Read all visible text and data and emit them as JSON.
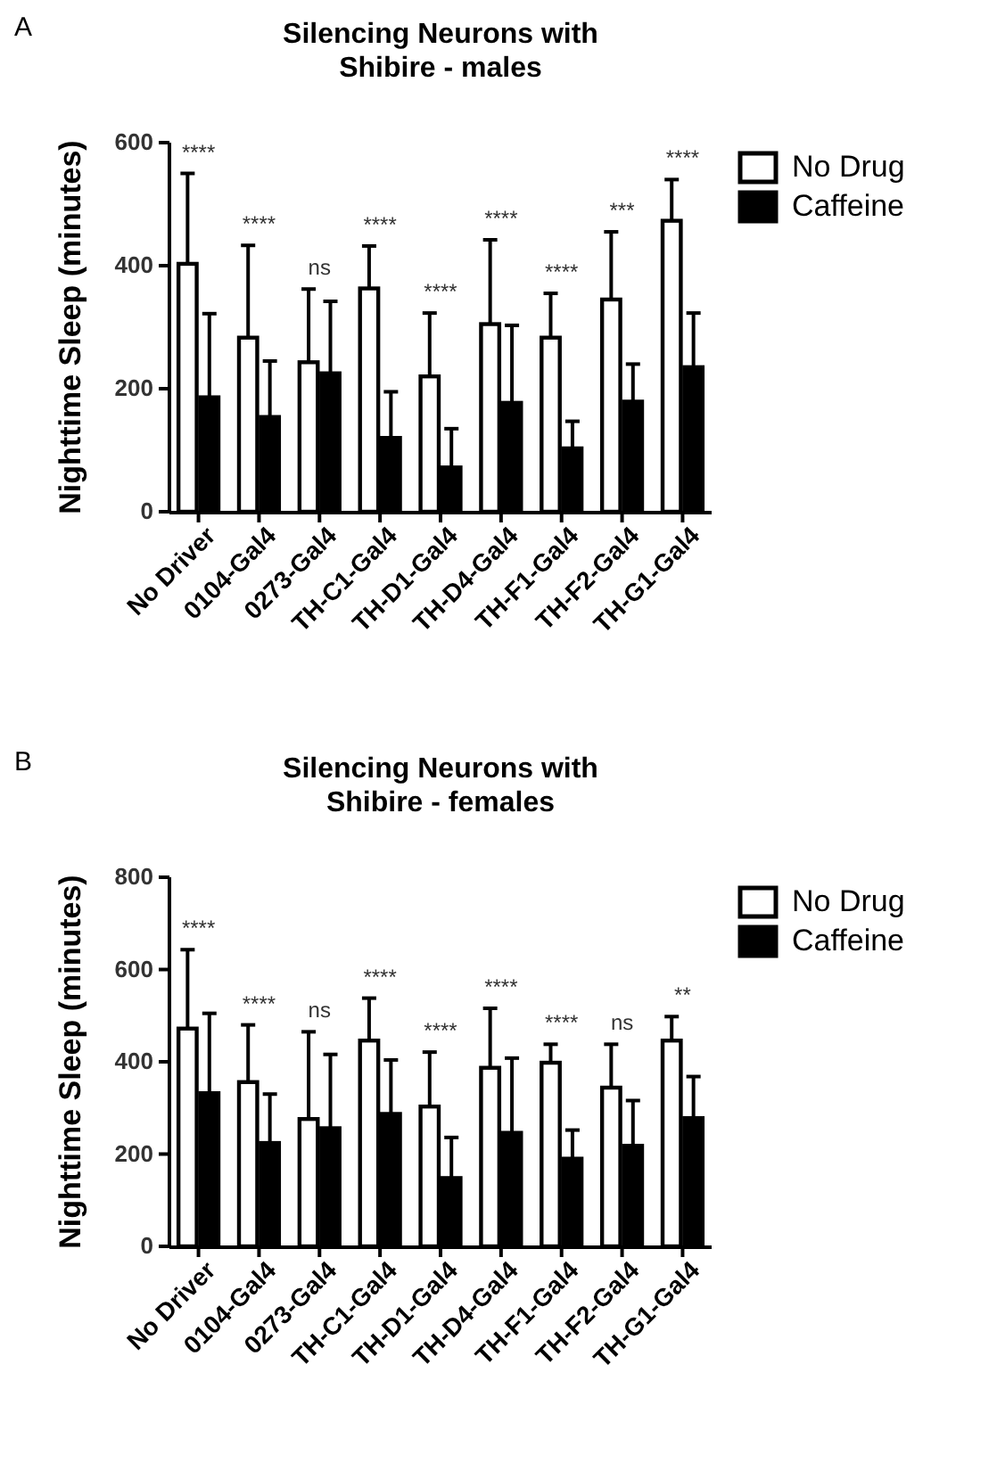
{
  "chart_data": [
    {
      "type": "bar",
      "title": "Silencing Neurons with\nShibire - males",
      "ylabel": "Nighttime Sleep (minutes)",
      "categories": [
        "No Driver",
        "0104-Gal4",
        "0273-Gal4",
        "TH-C1-Gal4",
        "TH-D1-Gal4",
        "TH-D4-Gal4",
        "TH-F1-Gal4",
        "TH-F2-Gal4",
        "TH-G1-Gal4"
      ],
      "series": [
        {
          "name": "No Drug",
          "color": "#ffffff",
          "values": [
            403,
            283,
            243,
            363,
            220,
            305,
            283,
            345,
            473
          ],
          "errors": [
            [
              403,
              550
            ],
            [
              283,
              433
            ],
            [
              243,
              362
            ],
            [
              363,
              432
            ],
            [
              220,
              323
            ],
            [
              305,
              442
            ],
            [
              283,
              355
            ],
            [
              345,
              455
            ],
            [
              473,
              540
            ]
          ]
        },
        {
          "name": "Caffeine",
          "color": "#000000",
          "values": [
            186,
            154,
            225,
            120,
            72,
            177,
            103,
            179,
            235
          ],
          "errors": [
            [
              186,
              322
            ],
            [
              154,
              245
            ],
            [
              225,
              342
            ],
            [
              120,
              195
            ],
            [
              72,
              135
            ],
            [
              177,
              303
            ],
            [
              103,
              147
            ],
            [
              179,
              240
            ],
            [
              235,
              323
            ]
          ]
        }
      ],
      "ylim": [
        0,
        600
      ],
      "yticks": [
        0,
        200,
        400,
        600
      ],
      "grid": false,
      "legend": "top right",
      "annotations": [
        "A",
        "****",
        "****",
        "ns",
        "****",
        "****",
        "****",
        "****",
        "***",
        "****"
      ]
    },
    {
      "type": "bar",
      "title": "Silencing Neurons with\nShibire - females",
      "ylabel": "Nighttime Sleep (minutes)",
      "categories": [
        "No Driver",
        "0104-Gal4",
        "0273-Gal4",
        "TH-C1-Gal4",
        "TH-D1-Gal4",
        "TH-D4-Gal4",
        "TH-F1-Gal4",
        "TH-F2-Gal4",
        "TH-G1-Gal4"
      ],
      "series": [
        {
          "name": "No Drug",
          "color": "#ffffff",
          "values": [
            472,
            356,
            276,
            446,
            303,
            387,
            398,
            344,
            446
          ],
          "errors": [
            [
              472,
              643
            ],
            [
              356,
              480
            ],
            [
              276,
              465
            ],
            [
              446,
              538
            ],
            [
              303,
              421
            ],
            [
              387,
              516
            ],
            [
              398,
              438
            ],
            [
              344,
              438
            ],
            [
              446,
              498
            ]
          ]
        },
        {
          "name": "Caffeine",
          "color": "#000000",
          "values": [
            332,
            224,
            256,
            287,
            148,
            246,
            190,
            218,
            278
          ],
          "errors": [
            [
              332,
              505
            ],
            [
              224,
              330
            ],
            [
              256,
              416
            ],
            [
              287,
              404
            ],
            [
              148,
              236
            ],
            [
              246,
              408
            ],
            [
              190,
              252
            ],
            [
              218,
              316
            ],
            [
              278,
              368
            ]
          ]
        }
      ],
      "ylim": [
        0,
        800
      ],
      "yticks": [
        0,
        200,
        400,
        600,
        800
      ],
      "grid": false,
      "legend": "top right",
      "annotations": [
        "B",
        "****",
        "****",
        "ns",
        "****",
        "****",
        "****",
        "****",
        "ns",
        "**"
      ]
    }
  ]
}
